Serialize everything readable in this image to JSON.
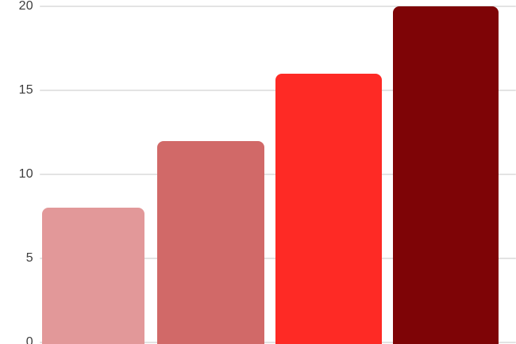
{
  "chart_data": {
    "type": "bar",
    "title": "",
    "xlabel": "",
    "ylabel": "",
    "categories": [
      "",
      "",
      "",
      ""
    ],
    "values": [
      8,
      12,
      16,
      20
    ],
    "ylim": [
      0,
      20
    ],
    "yticks": [
      0,
      5,
      10,
      15,
      20
    ],
    "grid": true,
    "legend": false,
    "bar_colors": [
      "#e29899",
      "#d16968",
      "#fe2a25",
      "#7e0406"
    ],
    "gridline_color": "#e3e3e3",
    "tick_label_color": "#3d3d3d",
    "background_color": "#ffffff"
  }
}
